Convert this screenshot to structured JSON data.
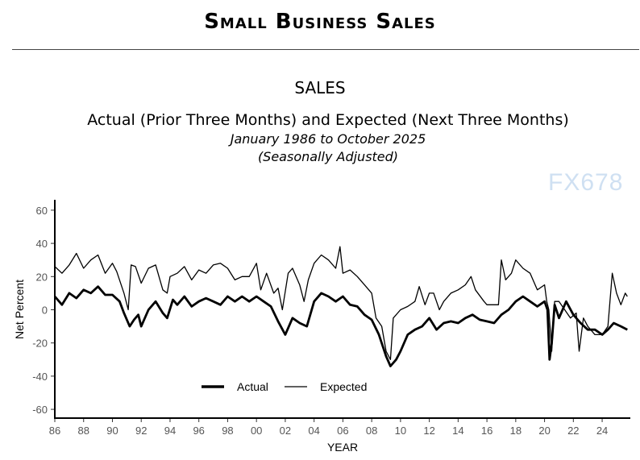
{
  "header": {
    "title": "Small Business Sales"
  },
  "watermark": "FX678",
  "chart_data": {
    "type": "line",
    "title": "SALES",
    "subtitle": "Actual (Prior Three Months) and Expected (Next Three Months)",
    "subtitle2": "January 1986 to October 2025",
    "subtitle3": "(Seasonally Adjusted)",
    "xlabel": "YEAR",
    "ylabel": "Net Percent",
    "xlim": [
      1986,
      2025.8
    ],
    "ylim": [
      -65,
      65
    ],
    "xticks": [
      {
        "v": 1986,
        "l": "86"
      },
      {
        "v": 1988,
        "l": "88"
      },
      {
        "v": 1990,
        "l": "90"
      },
      {
        "v": 1992,
        "l": "92"
      },
      {
        "v": 1994,
        "l": "94"
      },
      {
        "v": 1996,
        "l": "96"
      },
      {
        "v": 1998,
        "l": "98"
      },
      {
        "v": 2000,
        "l": "00"
      },
      {
        "v": 2002,
        "l": "02"
      },
      {
        "v": 2004,
        "l": "04"
      },
      {
        "v": 2006,
        "l": "06"
      },
      {
        "v": 2008,
        "l": "08"
      },
      {
        "v": 2010,
        "l": "10"
      },
      {
        "v": 2012,
        "l": "12"
      },
      {
        "v": 2014,
        "l": "14"
      },
      {
        "v": 2016,
        "l": "16"
      },
      {
        "v": 2018,
        "l": "18"
      },
      {
        "v": 2020,
        "l": "20"
      },
      {
        "v": 2022,
        "l": "22"
      },
      {
        "v": 2024,
        "l": "24"
      }
    ],
    "yticks": [
      60,
      40,
      20,
      0,
      -20,
      -40,
      -60
    ],
    "grid": false,
    "legend": "bottom-center",
    "series": [
      {
        "name": "Actual",
        "color": "#000000",
        "style": "thick",
        "points": [
          [
            1986,
            8
          ],
          [
            1986.5,
            3
          ],
          [
            1987,
            10
          ],
          [
            1987.5,
            7
          ],
          [
            1988,
            12
          ],
          [
            1988.5,
            10
          ],
          [
            1989,
            14
          ],
          [
            1989.5,
            9
          ],
          [
            1990,
            9
          ],
          [
            1990.5,
            5
          ],
          [
            1990.8,
            -2
          ],
          [
            1991.2,
            -10
          ],
          [
            1991.5,
            -6
          ],
          [
            1991.8,
            -3
          ],
          [
            1992,
            -10
          ],
          [
            1992.5,
            0
          ],
          [
            1993,
            5
          ],
          [
            1993.5,
            -2
          ],
          [
            1993.8,
            -5
          ],
          [
            1994.2,
            6
          ],
          [
            1994.5,
            3
          ],
          [
            1995,
            8
          ],
          [
            1995.5,
            2
          ],
          [
            1996,
            5
          ],
          [
            1996.5,
            7
          ],
          [
            1997,
            5
          ],
          [
            1997.5,
            3
          ],
          [
            1998,
            8
          ],
          [
            1998.5,
            5
          ],
          [
            1999,
            8
          ],
          [
            1999.5,
            5
          ],
          [
            2000,
            8
          ],
          [
            2000.5,
            5
          ],
          [
            2001,
            2
          ],
          [
            2001.5,
            -7
          ],
          [
            2002,
            -15
          ],
          [
            2002.5,
            -5
          ],
          [
            2003,
            -8
          ],
          [
            2003.5,
            -10
          ],
          [
            2004,
            5
          ],
          [
            2004.5,
            10
          ],
          [
            2005,
            8
          ],
          [
            2005.5,
            5
          ],
          [
            2006,
            8
          ],
          [
            2006.5,
            3
          ],
          [
            2007,
            2
          ],
          [
            2007.5,
            -3
          ],
          [
            2008,
            -6
          ],
          [
            2008.5,
            -15
          ],
          [
            2009,
            -28
          ],
          [
            2009.3,
            -34
          ],
          [
            2009.7,
            -30
          ],
          [
            2010,
            -25
          ],
          [
            2010.5,
            -15
          ],
          [
            2011,
            -12
          ],
          [
            2011.5,
            -10
          ],
          [
            2012,
            -5
          ],
          [
            2012.5,
            -12
          ],
          [
            2013,
            -8
          ],
          [
            2013.5,
            -7
          ],
          [
            2014,
            -8
          ],
          [
            2014.5,
            -5
          ],
          [
            2015,
            -3
          ],
          [
            2015.5,
            -6
          ],
          [
            2016,
            -7
          ],
          [
            2016.5,
            -8
          ],
          [
            2017,
            -3
          ],
          [
            2017.5,
            0
          ],
          [
            2018,
            5
          ],
          [
            2018.5,
            8
          ],
          [
            2019,
            5
          ],
          [
            2019.5,
            2
          ],
          [
            2020,
            5
          ],
          [
            2020.2,
            0
          ],
          [
            2020.35,
            -30
          ],
          [
            2020.5,
            -20
          ],
          [
            2020.7,
            3
          ],
          [
            2021,
            -5
          ],
          [
            2021.5,
            5
          ],
          [
            2022,
            -3
          ],
          [
            2022.5,
            -8
          ],
          [
            2023,
            -12
          ],
          [
            2023.5,
            -12
          ],
          [
            2024,
            -15
          ],
          [
            2024.4,
            -12
          ],
          [
            2024.8,
            -8
          ],
          [
            2025.3,
            -10
          ],
          [
            2025.75,
            -12
          ]
        ]
      },
      {
        "name": "Expected",
        "color": "#000000",
        "style": "thin",
        "points": [
          [
            1986,
            26
          ],
          [
            1986.5,
            22
          ],
          [
            1987,
            27
          ],
          [
            1987.5,
            34
          ],
          [
            1988,
            25
          ],
          [
            1988.5,
            30
          ],
          [
            1989,
            33
          ],
          [
            1989.5,
            22
          ],
          [
            1990,
            28
          ],
          [
            1990.3,
            23
          ],
          [
            1990.8,
            10
          ],
          [
            1991.1,
            0
          ],
          [
            1991.3,
            27
          ],
          [
            1991.6,
            26
          ],
          [
            1992,
            16
          ],
          [
            1992.5,
            25
          ],
          [
            1993,
            27
          ],
          [
            1993.5,
            12
          ],
          [
            1993.8,
            10
          ],
          [
            1994,
            20
          ],
          [
            1994.5,
            22
          ],
          [
            1995,
            26
          ],
          [
            1995.5,
            18
          ],
          [
            1996,
            24
          ],
          [
            1996.5,
            22
          ],
          [
            1997,
            27
          ],
          [
            1997.5,
            28
          ],
          [
            1998,
            25
          ],
          [
            1998.5,
            18
          ],
          [
            1999,
            20
          ],
          [
            1999.5,
            20
          ],
          [
            2000,
            28
          ],
          [
            2000.3,
            12
          ],
          [
            2000.7,
            22
          ],
          [
            2001.2,
            10
          ],
          [
            2001.5,
            13
          ],
          [
            2001.8,
            0
          ],
          [
            2002.2,
            22
          ],
          [
            2002.5,
            25
          ],
          [
            2003,
            15
          ],
          [
            2003.3,
            5
          ],
          [
            2003.6,
            18
          ],
          [
            2004,
            28
          ],
          [
            2004.5,
            33
          ],
          [
            2005,
            30
          ],
          [
            2005.5,
            25
          ],
          [
            2005.8,
            38
          ],
          [
            2006,
            22
          ],
          [
            2006.5,
            24
          ],
          [
            2007,
            20
          ],
          [
            2007.5,
            15
          ],
          [
            2008,
            10
          ],
          [
            2008.3,
            -5
          ],
          [
            2008.7,
            -10
          ],
          [
            2009,
            -25
          ],
          [
            2009.3,
            -30
          ],
          [
            2009.5,
            -5
          ],
          [
            2010,
            0
          ],
          [
            2010.5,
            2
          ],
          [
            2011,
            5
          ],
          [
            2011.3,
            14
          ],
          [
            2011.7,
            3
          ],
          [
            2012,
            10
          ],
          [
            2012.3,
            10
          ],
          [
            2012.7,
            0
          ],
          [
            2013,
            5
          ],
          [
            2013.5,
            10
          ],
          [
            2014,
            12
          ],
          [
            2014.5,
            15
          ],
          [
            2014.9,
            20
          ],
          [
            2015.2,
            12
          ],
          [
            2015.8,
            5
          ],
          [
            2016,
            3
          ],
          [
            2016.5,
            3
          ],
          [
            2016.8,
            3
          ],
          [
            2017,
            30
          ],
          [
            2017.3,
            18
          ],
          [
            2017.7,
            22
          ],
          [
            2018,
            30
          ],
          [
            2018.5,
            25
          ],
          [
            2019,
            22
          ],
          [
            2019.5,
            12
          ],
          [
            2020,
            15
          ],
          [
            2020.15,
            5
          ],
          [
            2020.3,
            0
          ],
          [
            2020.5,
            -25
          ],
          [
            2020.7,
            5
          ],
          [
            2021,
            5
          ],
          [
            2021.4,
            0
          ],
          [
            2021.8,
            -5
          ],
          [
            2022.2,
            -2
          ],
          [
            2022.4,
            -25
          ],
          [
            2022.7,
            -5
          ],
          [
            2023,
            -10
          ],
          [
            2023.5,
            -15
          ],
          [
            2024,
            -15
          ],
          [
            2024.4,
            -10
          ],
          [
            2024.7,
            22
          ],
          [
            2025,
            10
          ],
          [
            2025.3,
            3
          ],
          [
            2025.6,
            10
          ],
          [
            2025.75,
            8
          ]
        ]
      }
    ]
  }
}
